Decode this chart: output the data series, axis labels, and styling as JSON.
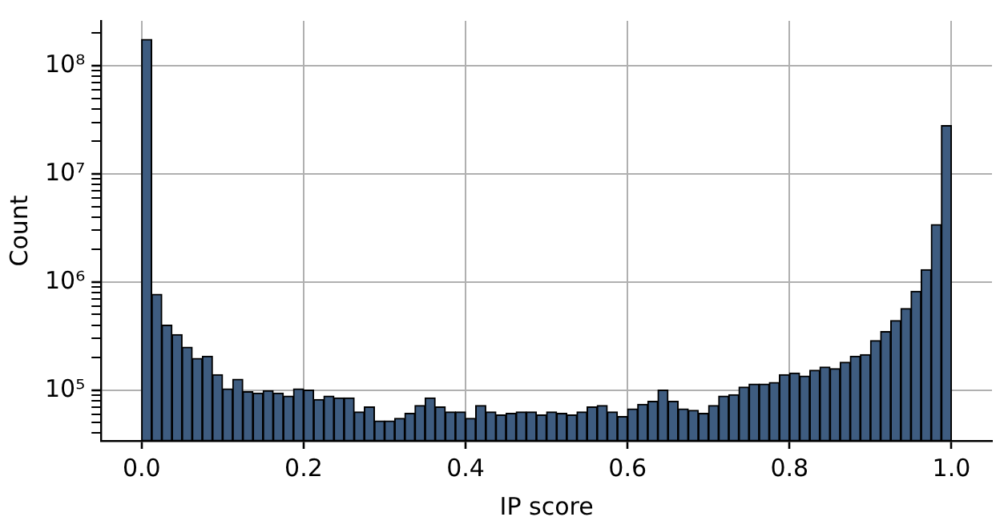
{
  "chart_data": {
    "type": "histogram",
    "xlabel": "IP score",
    "ylabel": "Count",
    "bins": [
      0,
      0.0125,
      0.025,
      0.0375,
      0.05,
      0.0625,
      0.075,
      0.0875,
      0.1,
      0.1125,
      0.125,
      0.1375,
      0.15,
      0.1625,
      0.175,
      0.1875,
      0.2,
      0.2125,
      0.225,
      0.2375,
      0.25,
      0.2625,
      0.275,
      0.2875,
      0.3,
      0.3125,
      0.325,
      0.3375,
      0.35,
      0.3625,
      0.375,
      0.3875,
      0.4,
      0.4125,
      0.425,
      0.4375,
      0.45,
      0.4625,
      0.475,
      0.4875,
      0.5,
      0.5125,
      0.525,
      0.5375,
      0.55,
      0.5625,
      0.575,
      0.5875,
      0.6,
      0.6125,
      0.625,
      0.6375,
      0.65,
      0.6625,
      0.675,
      0.6875,
      0.7,
      0.7125,
      0.725,
      0.7375,
      0.75,
      0.7625,
      0.775,
      0.7875,
      0.8,
      0.8125,
      0.825,
      0.8375,
      0.85,
      0.8625,
      0.875,
      0.8875,
      0.9,
      0.9125,
      0.925,
      0.9375,
      0.95,
      0.9625,
      0.975,
      0.9875,
      1
    ],
    "values": [
      175000000,
      770000,
      400000,
      327000,
      250000,
      197000,
      206000,
      139000,
      103000,
      126000,
      97000,
      94000,
      99000,
      94000,
      88000,
      103000,
      100000,
      82000,
      88000,
      85000,
      85000,
      63000,
      70000,
      52000,
      52000,
      55000,
      61000,
      72000,
      85000,
      70000,
      63000,
      63000,
      55000,
      72000,
      63000,
      59000,
      61000,
      63000,
      63000,
      59000,
      63000,
      61000,
      59000,
      63000,
      70000,
      72000,
      63000,
      57000,
      67000,
      74000,
      79000,
      100000,
      79000,
      67000,
      65000,
      61000,
      72000,
      88000,
      91000,
      107000,
      114000,
      114000,
      118000,
      139000,
      144000,
      135000,
      153000,
      164000,
      158000,
      181000,
      206000,
      213000,
      287000,
      349000,
      440000,
      570000,
      820000,
      1300000,
      3400000,
      28000000
    ],
    "color": "#3e5c80",
    "log": "y",
    "xlim": [
      -0.05,
      1.05
    ],
    "xticks": [
      {
        "value": 0,
        "label": "0.0"
      },
      {
        "value": 0.2,
        "label": "0.2"
      },
      {
        "value": 0.4,
        "label": "0.4"
      },
      {
        "value": 0.6,
        "label": "0.6"
      },
      {
        "value": 0.8,
        "label": "0.8"
      },
      {
        "value": 1,
        "label": "1.0"
      }
    ],
    "ylim": [
      34000,
      260000000
    ],
    "yticks": [
      {
        "value": 40000,
        "label": null
      },
      {
        "value": 50000,
        "label": null
      },
      {
        "value": 60000,
        "label": null
      },
      {
        "value": 70000,
        "label": null
      },
      {
        "value": 80000,
        "label": null
      },
      {
        "value": 90000,
        "label": null
      },
      {
        "value": 100000,
        "label": "10⁵"
      },
      {
        "value": 200000,
        "label": null
      },
      {
        "value": 300000,
        "label": null
      },
      {
        "value": 400000,
        "label": null
      },
      {
        "value": 500000,
        "label": null
      },
      {
        "value": 600000,
        "label": null
      },
      {
        "value": 700000,
        "label": null
      },
      {
        "value": 800000,
        "label": null
      },
      {
        "value": 900000,
        "label": null
      },
      {
        "value": 1000000,
        "label": "10⁶"
      },
      {
        "value": 2000000,
        "label": null
      },
      {
        "value": 3000000,
        "label": null
      },
      {
        "value": 4000000,
        "label": null
      },
      {
        "value": 5000000,
        "label": null
      },
      {
        "value": 6000000,
        "label": null
      },
      {
        "value": 7000000,
        "label": null
      },
      {
        "value": 8000000,
        "label": null
      },
      {
        "value": 9000000,
        "label": null
      },
      {
        "value": 10000000,
        "label": "10⁷"
      },
      {
        "value": 20000000,
        "label": null
      },
      {
        "value": 30000000,
        "label": null
      },
      {
        "value": 40000000,
        "label": null
      },
      {
        "value": 50000000,
        "label": null
      },
      {
        "value": 60000000,
        "label": null
      },
      {
        "value": 70000000,
        "label": null
      },
      {
        "value": 80000000,
        "label": null
      },
      {
        "value": 90000000,
        "label": null
      },
      {
        "value": 100000000,
        "label": "10⁸"
      },
      {
        "value": 200000000,
        "label": null
      }
    ],
    "grid": true
  }
}
